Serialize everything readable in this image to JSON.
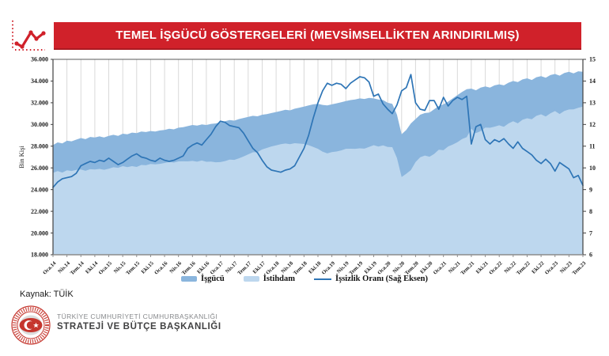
{
  "header": {
    "title": "TEMEL İŞGÜCÜ GÖSTERGELERİ (MEVSİMSELLİKTEN ARINDIRILMIŞ)",
    "banner_color": "#d0212a"
  },
  "source_label": "Kaynak: TÜİK",
  "footer": {
    "line1": "TÜRKİYE CUMHURİYETİ CUMHURBAŞKANLIĞI",
    "line2": "STRATEJİ VE BÜTÇE BAŞKANLIĞI",
    "emblem_color": "#c5362e"
  },
  "legend": {
    "items": [
      {
        "label": "İşgücü"
      },
      {
        "label": "İstihdam"
      },
      {
        "label": "İşsizlik Oranı (Sağ Eksen)"
      }
    ]
  },
  "chart_data": {
    "type": "area",
    "title": "",
    "grid": "vertical-quarterly",
    "grid_color": "#d9d9d9",
    "x_tick_every": 3,
    "x_tick_labels": [
      "Oca.14",
      "Nis.14",
      "Tem.14",
      "Eki.14",
      "Oca.15",
      "Nis.15",
      "Tem.15",
      "Eki.15",
      "Oca.16",
      "Nis.16",
      "Tem.16",
      "Eki.16",
      "Oca.17",
      "Nis.17",
      "Tem.17",
      "Eki.17",
      "Oca.18",
      "Nis.18",
      "Tem.18",
      "Eki.18",
      "Oca.19",
      "Nis.19",
      "Tem.19",
      "Eki.19",
      "Oca.20",
      "Nis.20",
      "Tem.20",
      "Eki.20",
      "Oca.21",
      "Nis.21",
      "Tem.21",
      "Eki.21",
      "Oca.22",
      "Nis.22",
      "Tem.22",
      "Eki.22",
      "Oca.23",
      "Nis.23",
      "Tem.23"
    ],
    "left_axis": {
      "label": "Bin Kişi",
      "min": 18000,
      "max": 36000,
      "tick_labels": [
        "36.000",
        "34.000",
        "32.000",
        "30.000",
        "28.000",
        "26.000",
        "24.000",
        "22.000",
        "20.000",
        "18.000"
      ]
    },
    "right_axis": {
      "label": "",
      "min": 6,
      "max": 15,
      "tick_labels": [
        "15",
        "14",
        "13",
        "12",
        "11",
        "10",
        "9",
        "8",
        "7",
        "6"
      ]
    },
    "series": [
      {
        "name": "İşgücü",
        "type": "area",
        "axis": "left",
        "color": "#8ab5dd",
        "values": [
          28100,
          28350,
          28250,
          28500,
          28450,
          28600,
          28750,
          28650,
          28850,
          28800,
          28900,
          28800,
          28950,
          29050,
          28950,
          29150,
          29100,
          29250,
          29200,
          29350,
          29300,
          29400,
          29350,
          29450,
          29500,
          29600,
          29550,
          29700,
          29750,
          29850,
          29950,
          29900,
          30000,
          29950,
          30050,
          30100,
          30200,
          30300,
          30400,
          30350,
          30500,
          30600,
          30700,
          30800,
          30750,
          30900,
          30950,
          31050,
          31150,
          31250,
          31350,
          31300,
          31450,
          31550,
          31650,
          31750,
          31850,
          31900,
          31800,
          31750,
          31850,
          31950,
          32050,
          32150,
          32250,
          32300,
          32400,
          32350,
          32450,
          32400,
          32300,
          32250,
          32000,
          31900,
          30900,
          29100,
          29500,
          30100,
          30500,
          30900,
          31050,
          31100,
          31400,
          31700,
          31850,
          32100,
          32400,
          32700,
          33000,
          33250,
          33300,
          33150,
          33400,
          33500,
          33400,
          33600,
          33700,
          33600,
          33850,
          34000,
          33900,
          34150,
          34250,
          34100,
          34350,
          34450,
          34300,
          34550,
          34650,
          34500,
          34750,
          34850,
          34700,
          34900,
          34850
        ]
      },
      {
        "name": "İstihdam",
        "type": "area",
        "axis": "left",
        "color": "#bdd7ee",
        "values": [
          25540,
          25700,
          25570,
          25780,
          25720,
          25810,
          25850,
          25730,
          25880,
          25850,
          25910,
          25830,
          25920,
          26060,
          26010,
          26160,
          26070,
          26160,
          26090,
          26270,
          26240,
          26360,
          26330,
          26370,
          26450,
          26550,
          26490,
          26600,
          26610,
          26600,
          26640,
          26570,
          26680,
          26565,
          26580,
          26520,
          26530,
          26630,
          26770,
          26740,
          26885,
          27050,
          27245,
          27440,
          27460,
          27700,
          27840,
          27975,
          28080,
          28185,
          28245,
          28185,
          28275,
          28240,
          28200,
          28095,
          27930,
          27755,
          27490,
          27335,
          27455,
          27510,
          27610,
          27760,
          27765,
          27760,
          27800,
          27775,
          27925,
          28090,
          27970,
          28075,
          27935,
          27910,
          26915,
          25155,
          25460,
          25795,
          26535,
          26975,
          27140,
          27030,
          27285,
          27675,
          27630,
          27975,
          28155,
          28365,
          28660,
          28830,
          29605,
          29205,
          29390,
          29715,
          29695,
          29800,
          29925,
          29785,
          30095,
          30295,
          30105,
          30430,
          30570,
          30485,
          30795,
          30935,
          30730,
          31025,
          31235,
          30965,
          31240,
          31380,
          31385,
          31530,
          31645
        ]
      },
      {
        "name": "İşsizlik Oranı (Sağ Eksen)",
        "type": "line",
        "axis": "right",
        "color": "#2e75b6",
        "values": [
          9.1,
          9.35,
          9.5,
          9.55,
          9.6,
          9.75,
          10.1,
          10.2,
          10.3,
          10.25,
          10.35,
          10.3,
          10.45,
          10.3,
          10.15,
          10.25,
          10.4,
          10.55,
          10.65,
          10.5,
          10.45,
          10.35,
          10.3,
          10.45,
          10.35,
          10.3,
          10.35,
          10.45,
          10.55,
          10.9,
          11.05,
          11.15,
          11.05,
          11.3,
          11.55,
          11.9,
          12.15,
          12.1,
          11.95,
          11.9,
          11.85,
          11.6,
          11.25,
          10.9,
          10.7,
          10.35,
          10.05,
          9.9,
          9.85,
          9.8,
          9.9,
          9.95,
          10.1,
          10.5,
          10.9,
          11.5,
          12.3,
          13.0,
          13.55,
          13.9,
          13.8,
          13.9,
          13.85,
          13.65,
          13.9,
          14.05,
          14.2,
          14.15,
          13.95,
          13.3,
          13.4,
          12.95,
          12.7,
          12.5,
          12.9,
          13.55,
          13.7,
          14.3,
          13.0,
          12.7,
          12.65,
          13.1,
          13.1,
          12.7,
          13.25,
          12.85,
          13.1,
          13.25,
          13.15,
          13.3,
          11.1,
          11.9,
          12.0,
          11.3,
          11.1,
          11.3,
          11.2,
          11.35,
          11.1,
          10.9,
          11.2,
          10.9,
          10.75,
          10.6,
          10.35,
          10.2,
          10.4,
          10.2,
          9.85,
          10.25,
          10.1,
          9.95,
          9.55,
          9.65,
          9.2
        ]
      }
    ]
  }
}
